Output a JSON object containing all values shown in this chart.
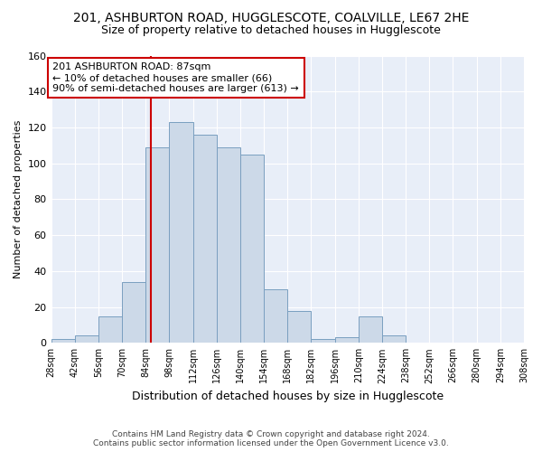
{
  "title1": "201, ASHBURTON ROAD, HUGGLESCOTE, COALVILLE, LE67 2HE",
  "title2": "Size of property relative to detached houses in Hugglescote",
  "xlabel": "Distribution of detached houses by size in Hugglescote",
  "ylabel": "Number of detached properties",
  "footer1": "Contains HM Land Registry data © Crown copyright and database right 2024.",
  "footer2": "Contains public sector information licensed under the Open Government Licence v3.0.",
  "annotation_line1": "201 ASHBURTON ROAD: 87sqm",
  "annotation_line2": "← 10% of detached houses are smaller (66)",
  "annotation_line3": "90% of semi-detached houses are larger (613) →",
  "property_size": 87,
  "bin_edges": [
    28,
    42,
    56,
    70,
    84,
    98,
    112,
    126,
    140,
    154,
    168,
    182,
    196,
    210,
    224,
    238,
    252,
    266,
    280,
    294,
    308
  ],
  "bar_heights": [
    2,
    4,
    15,
    34,
    109,
    123,
    116,
    109,
    105,
    30,
    18,
    2,
    3,
    15,
    4,
    0,
    0,
    0,
    0,
    0
  ],
  "bar_color": "#ccd9e8",
  "bar_edge_color": "#7a9fc0",
  "vline_color": "#cc0000",
  "annotation_box_color": "#cc0000",
  "fig_facecolor": "#ffffff",
  "axes_facecolor": "#e8eef8",
  "grid_color": "#ffffff",
  "ylim": [
    0,
    160
  ],
  "yticks": [
    0,
    20,
    40,
    60,
    80,
    100,
    120,
    140,
    160
  ],
  "title1_fontsize": 10,
  "title2_fontsize": 9,
  "xlabel_fontsize": 9,
  "ylabel_fontsize": 8,
  "footer_fontsize": 6.5,
  "annot_fontsize": 8
}
